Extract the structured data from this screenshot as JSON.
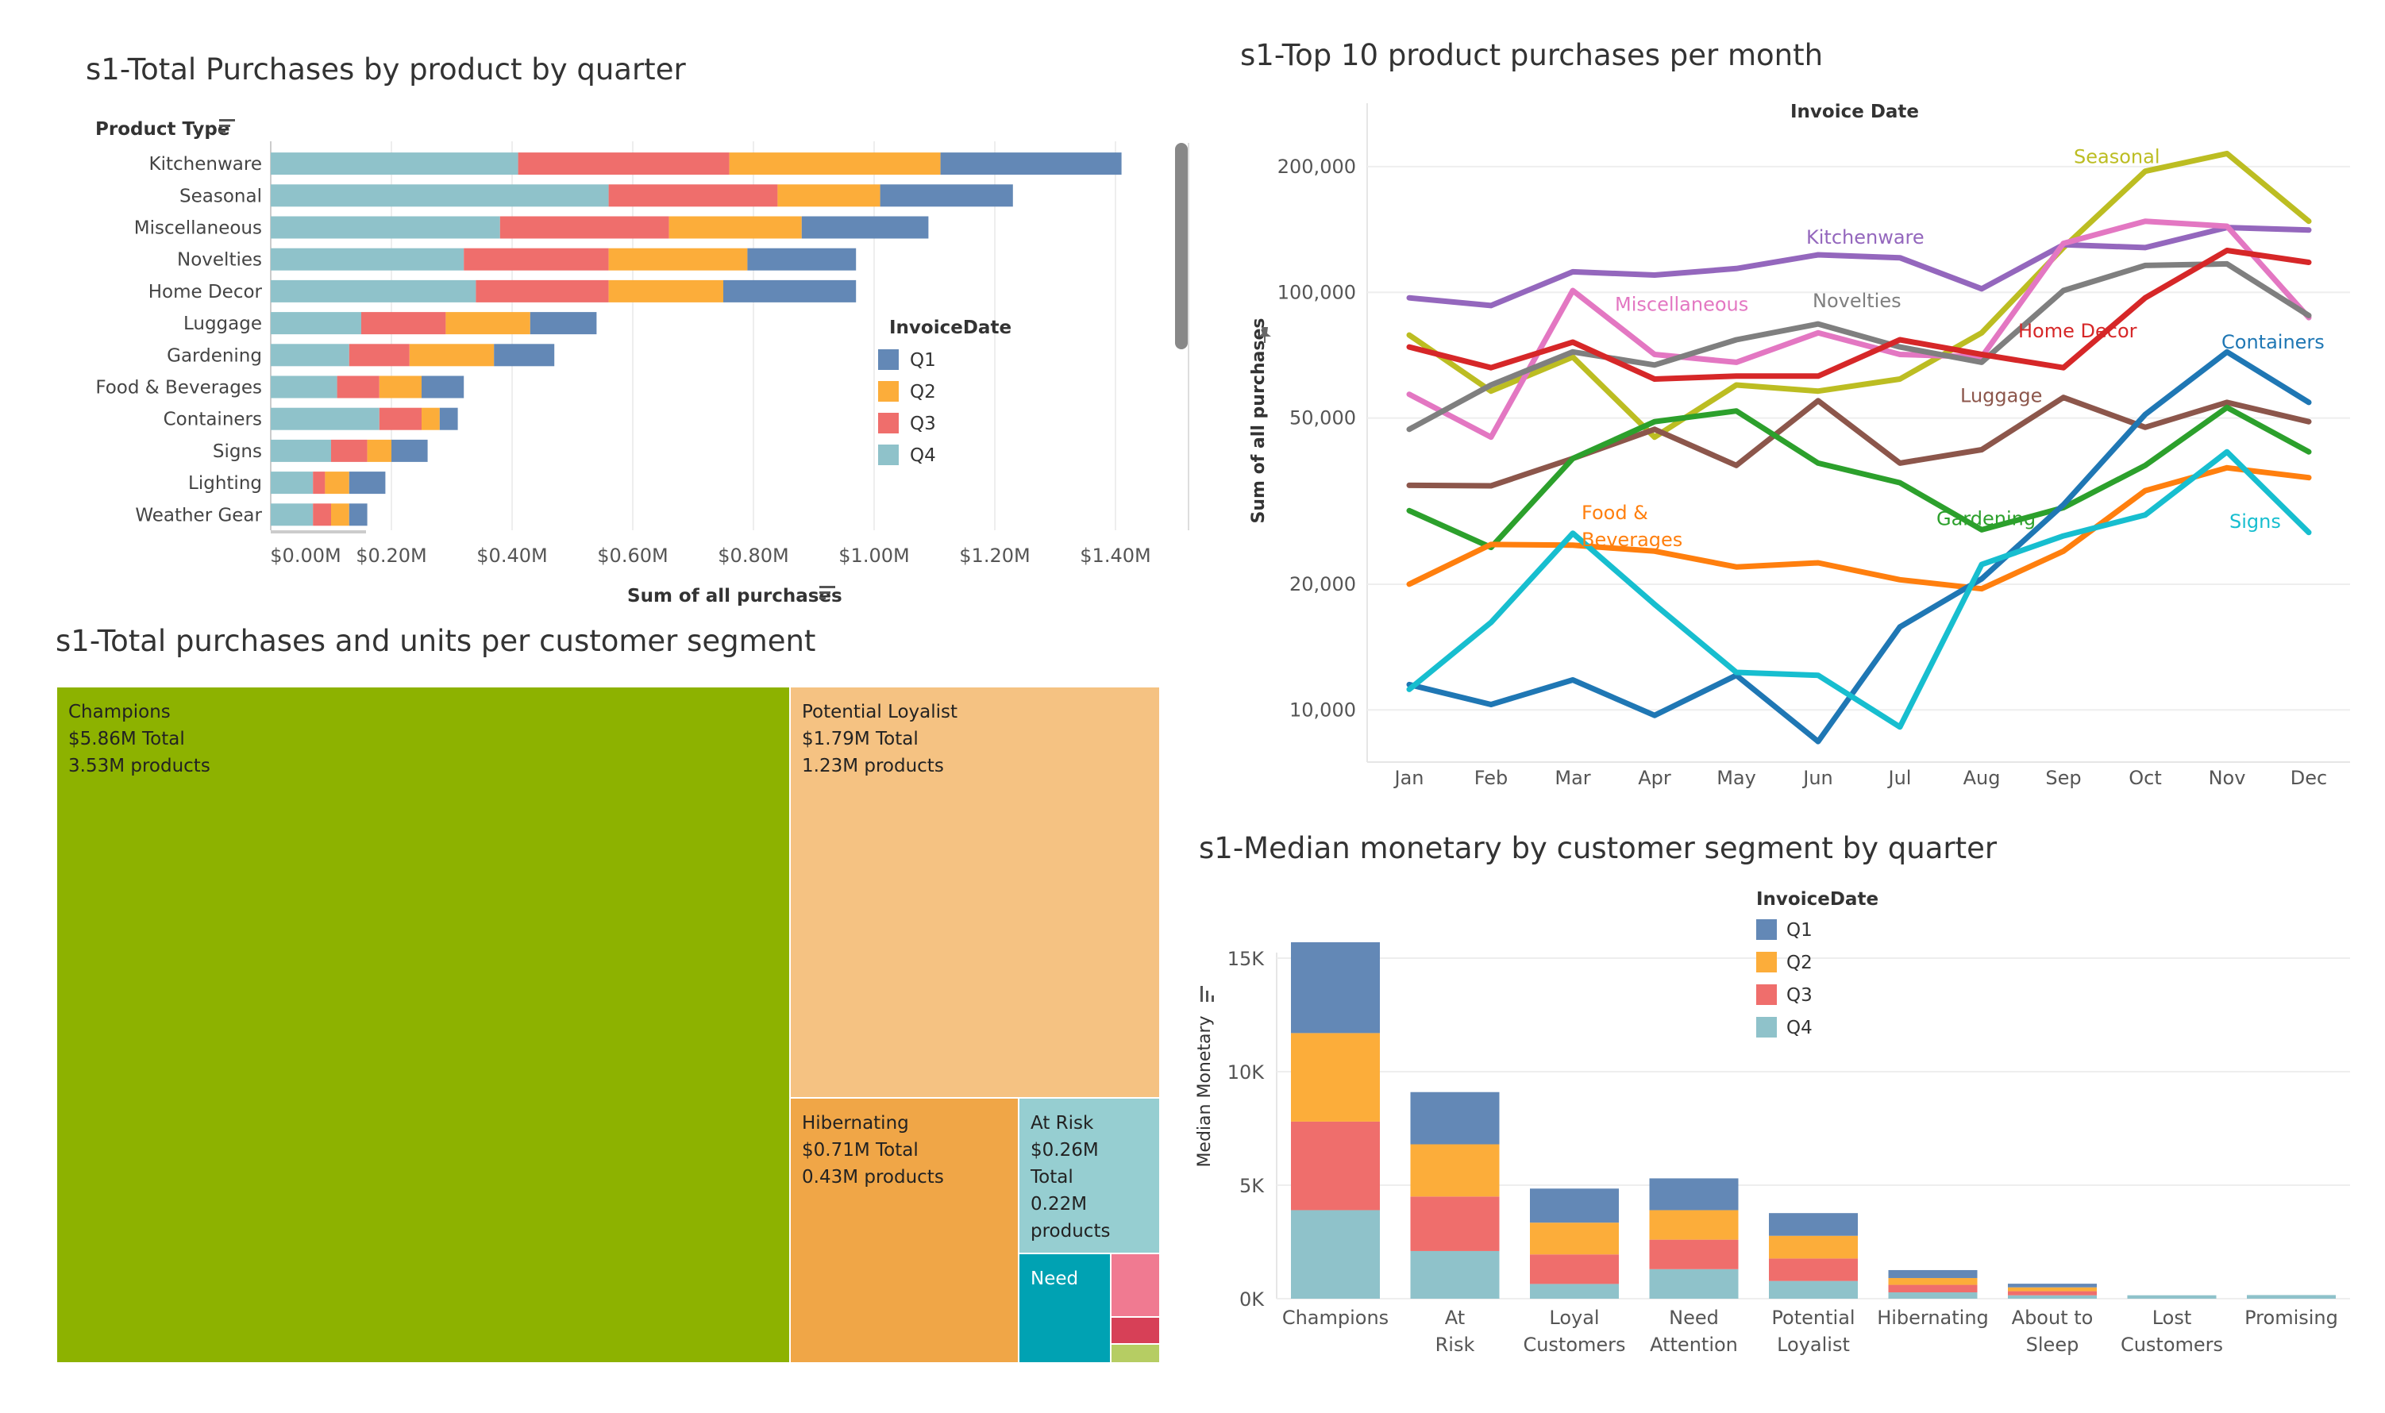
{
  "colors": {
    "Q1": "#6388b6",
    "Q2": "#fcad3a",
    "Q3": "#ef6e6c",
    "Q4": "#8fc2ca"
  },
  "panel1": {
    "title": "s1-Total Purchases by product by quarter",
    "row_header": "Product Type",
    "xlabel": "Sum of all purchases",
    "legend_title": "InvoiceDate"
  },
  "panel2": {
    "title": "s1-Top 10 product purchases per month",
    "header": "Invoice Date",
    "ylabel": "Sum of all purchases"
  },
  "panel3": {
    "title": "s1-Total purchases and units per customer segment"
  },
  "panel4": {
    "title": "s1-Median monetary by customer segment by quarter",
    "ylabel": "Median Monetary",
    "legend_title": "InvoiceDate"
  },
  "chart_data": [
    {
      "type": "bar",
      "orientation": "horizontal",
      "stacked": true,
      "title": "s1-Total Purchases by product by quarter",
      "xlabel": "Sum of all purchases",
      "ylabel": "Product Type",
      "legend_title": "InvoiceDate",
      "categories": [
        "Kitchenware",
        "Seasonal",
        "Miscellaneous",
        "Novelties",
        "Home Decor",
        "Luggage",
        "Gardening",
        "Food & Beverages",
        "Containers",
        "Signs",
        "Lighting",
        "Weather Gear"
      ],
      "stack_order": [
        "Q4",
        "Q3",
        "Q2",
        "Q1"
      ],
      "series": [
        {
          "name": "Q4",
          "values": [
            0.41,
            0.56,
            0.38,
            0.32,
            0.34,
            0.15,
            0.13,
            0.11,
            0.18,
            0.1,
            0.07,
            0.07
          ]
        },
        {
          "name": "Q3",
          "values": [
            0.35,
            0.28,
            0.28,
            0.24,
            0.22,
            0.14,
            0.1,
            0.07,
            0.07,
            0.06,
            0.02,
            0.03
          ]
        },
        {
          "name": "Q2",
          "values": [
            0.35,
            0.17,
            0.22,
            0.23,
            0.19,
            0.14,
            0.14,
            0.07,
            0.03,
            0.04,
            0.04,
            0.03
          ]
        },
        {
          "name": "Q1",
          "values": [
            0.3,
            0.22,
            0.21,
            0.18,
            0.22,
            0.11,
            0.1,
            0.07,
            0.03,
            0.06,
            0.06,
            0.03
          ]
        }
      ],
      "xticks": [
        "$0.00M",
        "$0.20M",
        "$0.40M",
        "$0.60M",
        "$0.80M",
        "$1.00M",
        "$1.20M",
        "$1.40M"
      ],
      "xlim": [
        0,
        1.5
      ],
      "legend": [
        "Q1",
        "Q2",
        "Q3",
        "Q4"
      ]
    },
    {
      "type": "line",
      "title": "s1-Top 10 product purchases per month",
      "header": "Invoice Date",
      "ylabel": "Sum of all purchases",
      "yscale": "log",
      "x": [
        "Jan",
        "Feb",
        "Mar",
        "Apr",
        "May",
        "Jun",
        "Jul",
        "Aug",
        "Sep",
        "Oct",
        "Nov",
        "Dec"
      ],
      "yticks": [
        "10,000",
        "20,000",
        "50,000",
        "100,000",
        "200,000"
      ],
      "ylim": [
        7500,
        260000
      ],
      "series": [
        {
          "name": "Seasonal",
          "color": "#bcbd22",
          "values": [
            79000,
            58000,
            70000,
            45000,
            60000,
            58000,
            62000,
            80000,
            128000,
            195000,
            215000,
            148000
          ]
        },
        {
          "name": "Kitchenware",
          "color": "#9467bd",
          "values": [
            97000,
            93000,
            112000,
            110000,
            114000,
            123000,
            121000,
            102000,
            130000,
            128000,
            143000,
            141000
          ]
        },
        {
          "name": "Miscellaneous",
          "color": "#e377c2",
          "values": [
            57000,
            45000,
            101000,
            71000,
            68000,
            80000,
            71000,
            70000,
            131000,
            148000,
            144000,
            87000
          ]
        },
        {
          "name": "Novelties",
          "color": "#7f7f7f",
          "values": [
            47000,
            60000,
            72000,
            67000,
            77000,
            84000,
            74000,
            68000,
            101000,
            116000,
            117000,
            88000
          ]
        },
        {
          "name": "Home Decor",
          "color": "#d62728",
          "values": [
            74000,
            66000,
            76000,
            62000,
            63000,
            63000,
            77000,
            71000,
            66000,
            97000,
            126000,
            118000
          ]
        },
        {
          "name": "Luggage",
          "color": "#8c564b",
          "values": [
            34500,
            34400,
            40000,
            47000,
            38500,
            55000,
            39000,
            42000,
            56000,
            47500,
            54500,
            49000
          ]
        },
        {
          "name": "Gardening",
          "color": "#2ca02c",
          "values": [
            30000,
            24500,
            40000,
            49000,
            52000,
            39000,
            35000,
            27000,
            30500,
            38500,
            53000,
            41500
          ]
        },
        {
          "name": "Food & Beverages",
          "color": "#ff7f0e",
          "values": [
            20000,
            24900,
            24800,
            24000,
            22000,
            22500,
            20500,
            19500,
            24000,
            33500,
            38000,
            36000
          ]
        },
        {
          "name": "Containers",
          "color": "#1f77b4",
          "values": [
            11500,
            10300,
            11800,
            9700,
            12100,
            8400,
            15800,
            20600,
            31000,
            51000,
            72000,
            54500
          ]
        },
        {
          "name": "Signs",
          "color": "#17becf",
          "values": [
            11200,
            16200,
            26500,
            17900,
            12300,
            12100,
            9100,
            22300,
            26100,
            29300,
            41500,
            26600
          ]
        }
      ]
    },
    {
      "type": "treemap",
      "title": "s1-Total purchases and units per customer segment",
      "cells": [
        {
          "name": "Champions",
          "total": "$5.86M Total",
          "units": "3.53M products",
          "color": "#8db200"
        },
        {
          "name": "Potential Loyalist",
          "total": "$1.79M Total",
          "units": "1.23M products",
          "color": "#f5c282"
        },
        {
          "name": "Hibernating",
          "total": "$0.71M Total",
          "units": "0.43M products",
          "color": "#f0a647"
        },
        {
          "name": "At Risk",
          "total": "$0.26M Total",
          "units": "0.22M products",
          "color": "#96ced1"
        },
        {
          "name": "Need",
          "color": "#00a2b3"
        },
        {
          "name": "",
          "color": "#f07a91"
        },
        {
          "name": "",
          "color": "#d74057"
        },
        {
          "name": "",
          "color": "#b6cd63"
        }
      ]
    },
    {
      "type": "bar",
      "stacked": true,
      "title": "s1-Median monetary by customer segment by quarter",
      "ylabel": "Median Monetary",
      "legend_title": "InvoiceDate",
      "categories": [
        "Champions",
        "At Risk",
        "Loyal Customers",
        "Need Attention",
        "Potential Loyalist",
        "Hibernating",
        "About to Sleep",
        "Lost Customers",
        "Promising"
      ],
      "stack_order": [
        "Q4",
        "Q3",
        "Q2",
        "Q1"
      ],
      "series": [
        {
          "name": "Q4",
          "values": [
            3900,
            2100,
            650,
            1300,
            780,
            280,
            150,
            150,
            160
          ]
        },
        {
          "name": "Q3",
          "values": [
            3900,
            2400,
            1300,
            1300,
            990,
            330,
            180,
            0,
            0
          ]
        },
        {
          "name": "Q2",
          "values": [
            3900,
            2300,
            1400,
            1300,
            1000,
            300,
            170,
            0,
            0
          ]
        },
        {
          "name": "Q1",
          "values": [
            4000,
            2300,
            1500,
            1400,
            1000,
            350,
            160,
            0,
            0
          ]
        }
      ],
      "yticks": [
        "0K",
        "5K",
        "10K",
        "15K"
      ],
      "ylim": [
        0,
        15800
      ],
      "legend": [
        "Q1",
        "Q2",
        "Q3",
        "Q4"
      ]
    }
  ]
}
